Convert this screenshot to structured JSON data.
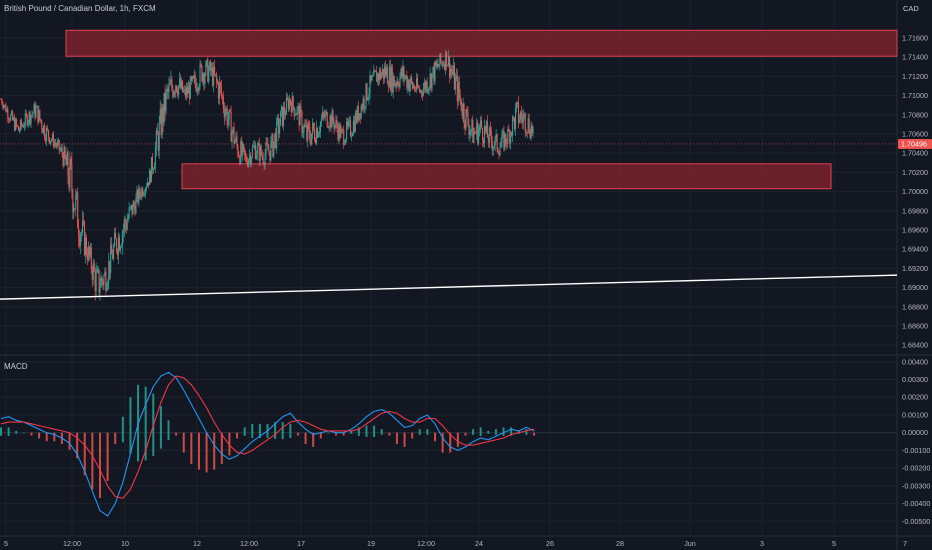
{
  "header": {
    "title": "British Pound / Canadian Dollar, 1h, FXCM",
    "currency": "CAD"
  },
  "macd_panel": {
    "label": "MACD"
  },
  "chart_data": [
    {
      "type": "candlestick",
      "title": "British Pound / Canadian Dollar, 1h, FXCM",
      "ylabel": "",
      "ylim": [
        1.6835,
        1.7185
      ],
      "y_ticks": [
        "1.71600",
        "1.71400",
        "1.71200",
        "1.71000",
        "1.70800",
        "1.70600",
        "1.70400",
        "1.70200",
        "1.70000",
        "1.69800",
        "1.69600",
        "1.69400",
        "1.69200",
        "1.69000",
        "1.68800",
        "1.68600",
        "1.68400"
      ],
      "y_tick_values": [
        1.716,
        1.714,
        1.712,
        1.71,
        1.708,
        1.706,
        1.704,
        1.702,
        1.7,
        1.698,
        1.696,
        1.694,
        1.692,
        1.69,
        1.688,
        1.686,
        1.684
      ],
      "x_labels": [
        "5",
        "12:00",
        "10",
        "12",
        "12:00",
        "17",
        "19",
        "12:00",
        "24",
        "26",
        "28",
        "Jun",
        "3",
        "5",
        "7"
      ],
      "last_price": "1.70496",
      "last_price_value": 1.70496,
      "grid": true,
      "zones": [
        {
          "name": "resistance-zone",
          "y_top": 1.7168,
          "y_bottom": 1.7141,
          "color": "#b22833"
        },
        {
          "name": "support-zone",
          "y_top": 1.7029,
          "y_bottom": 1.7003,
          "color": "#b22833"
        }
      ],
      "trendline": {
        "y_start": 1.6888,
        "y_end": 1.6913,
        "color": "#ffffff"
      },
      "price_path": [
        [
          1.709,
          1.7102
        ],
        [
          1.707,
          1.7088
        ],
        [
          1.7055,
          1.7073
        ],
        [
          1.7068,
          1.7086
        ],
        [
          1.7074,
          1.7096
        ],
        [
          1.7052,
          1.7076
        ],
        [
          1.7045,
          1.706
        ],
        [
          1.703,
          1.705
        ],
        [
          1.698,
          1.704
        ],
        [
          1.694,
          1.699
        ],
        [
          1.692,
          1.695
        ],
        [
          1.688,
          1.6925
        ],
        [
          1.6895,
          1.693
        ],
        [
          1.6925,
          1.696
        ],
        [
          1.694,
          1.6985
        ],
        [
          1.6968,
          1.6995
        ],
        [
          1.699,
          1.701
        ],
        [
          1.7005,
          1.7025
        ],
        [
          1.7035,
          1.708
        ],
        [
          1.708,
          1.712
        ],
        [
          1.7098,
          1.7133
        ],
        [
          1.709,
          1.7112
        ],
        [
          1.7096,
          1.7125
        ],
        [
          1.711,
          1.7141
        ],
        [
          1.7112,
          1.7138
        ],
        [
          1.7088,
          1.7125
        ],
        [
          1.706,
          1.7092
        ],
        [
          1.703,
          1.7063
        ],
        [
          1.702,
          1.7045
        ],
        [
          1.7033,
          1.7058
        ],
        [
          1.7025,
          1.705
        ],
        [
          1.703,
          1.7062
        ],
        [
          1.7058,
          1.709
        ],
        [
          1.7085,
          1.7106
        ],
        [
          1.7068,
          1.7095
        ],
        [
          1.704,
          1.7075
        ],
        [
          1.7048,
          1.708
        ],
        [
          1.7066,
          1.709
        ],
        [
          1.7062,
          1.7086
        ],
        [
          1.7046,
          1.707
        ],
        [
          1.7052,
          1.7078
        ],
        [
          1.7072,
          1.7096
        ],
        [
          1.7092,
          1.712
        ],
        [
          1.7108,
          1.7133
        ],
        [
          1.711,
          1.714
        ],
        [
          1.71,
          1.713
        ],
        [
          1.7108,
          1.7136
        ],
        [
          1.7096,
          1.7125
        ],
        [
          1.7095,
          1.7115
        ],
        [
          1.7102,
          1.713
        ],
        [
          1.7118,
          1.7143
        ],
        [
          1.7128,
          1.7153
        ],
        [
          1.7095,
          1.713
        ],
        [
          1.7065,
          1.71
        ],
        [
          1.7045,
          1.7075
        ],
        [
          1.705,
          1.7083
        ],
        [
          1.704,
          1.7068
        ],
        [
          1.7035,
          1.706
        ],
        [
          1.7045,
          1.707
        ],
        [
          1.7062,
          1.7098
        ],
        [
          1.706,
          1.709
        ],
        [
          1.7048,
          1.7076
        ]
      ]
    },
    {
      "type": "macd",
      "title": "MACD",
      "ylim": [
        -0.0056,
        0.0041
      ],
      "y_ticks": [
        "0.00400",
        "0.00300",
        "0.00200",
        "0.00100",
        "0.00000",
        "-0.00100",
        "-0.00200",
        "-0.00300",
        "-0.00400",
        "-0.00500"
      ],
      "y_tick_values": [
        0.004,
        0.003,
        0.002,
        0.001,
        0.0,
        -0.001,
        -0.002,
        -0.003,
        -0.004,
        -0.005
      ],
      "macd_color": "#2196f3",
      "signal_color": "#f23645",
      "hist_pos_color": "#26a69a",
      "hist_neg_color": "#ef5350",
      "macd_line": [
        0.0008,
        0.0009,
        0.0007,
        0.0006,
        0.0004,
        0.0002,
        0.0,
        -0.0001,
        -0.0003,
        -0.0006,
        -0.0012,
        -0.0022,
        -0.0033,
        -0.0044,
        -0.0047,
        -0.004,
        -0.0028,
        -0.0012,
        0.0005,
        0.0016,
        0.0026,
        0.0032,
        0.0034,
        0.0031,
        0.0024,
        0.0016,
        0.0008,
        0.0,
        -0.0007,
        -0.0012,
        -0.0015,
        -0.0013,
        -0.0009,
        -0.0005,
        -0.0002,
        0.0001,
        0.0005,
        0.0009,
        0.0011,
        0.0006,
        0.0002,
        -0.0001,
        0.0,
        0.0001,
        0.0,
        0.0,
        0.0002,
        0.0005,
        0.0009,
        0.0012,
        0.0013,
        0.0011,
        0.0007,
        0.0003,
        0.0004,
        0.0008,
        0.001,
        0.0005,
        -0.0003,
        -0.0008,
        -0.001,
        -0.0008,
        -0.0005,
        -0.0003,
        -0.0004,
        -0.0002,
        0.0,
        0.0002,
        0.0001,
        0.0003,
        0.0001
      ],
      "signal_line": [
        0.0005,
        0.0006,
        0.0006,
        0.0006,
        0.0005,
        0.0004,
        0.0003,
        0.0002,
        0.0001,
        0.0,
        -0.0003,
        -0.0007,
        -0.0013,
        -0.0021,
        -0.003,
        -0.0036,
        -0.0037,
        -0.0032,
        -0.0022,
        -0.001,
        0.0004,
        0.0017,
        0.0027,
        0.0032,
        0.0031,
        0.0027,
        0.0021,
        0.0014,
        0.0006,
        -0.0001,
        -0.0007,
        -0.0011,
        -0.0012,
        -0.001,
        -0.0007,
        -0.0004,
        -0.0001,
        0.0003,
        0.0006,
        0.0007,
        0.0006,
        0.0004,
        0.0002,
        0.0001,
        0.0001,
        0.0001,
        0.0001,
        0.0002,
        0.0005,
        0.0008,
        0.0011,
        0.0012,
        0.0011,
        0.0008,
        0.0006,
        0.0006,
        0.0008,
        0.0008,
        0.0004,
        -0.0001,
        -0.0005,
        -0.0007,
        -0.0007,
        -0.0006,
        -0.0005,
        -0.0004,
        -0.0003,
        -0.0001,
        0.0,
        0.0001,
        0.0002
      ]
    }
  ]
}
